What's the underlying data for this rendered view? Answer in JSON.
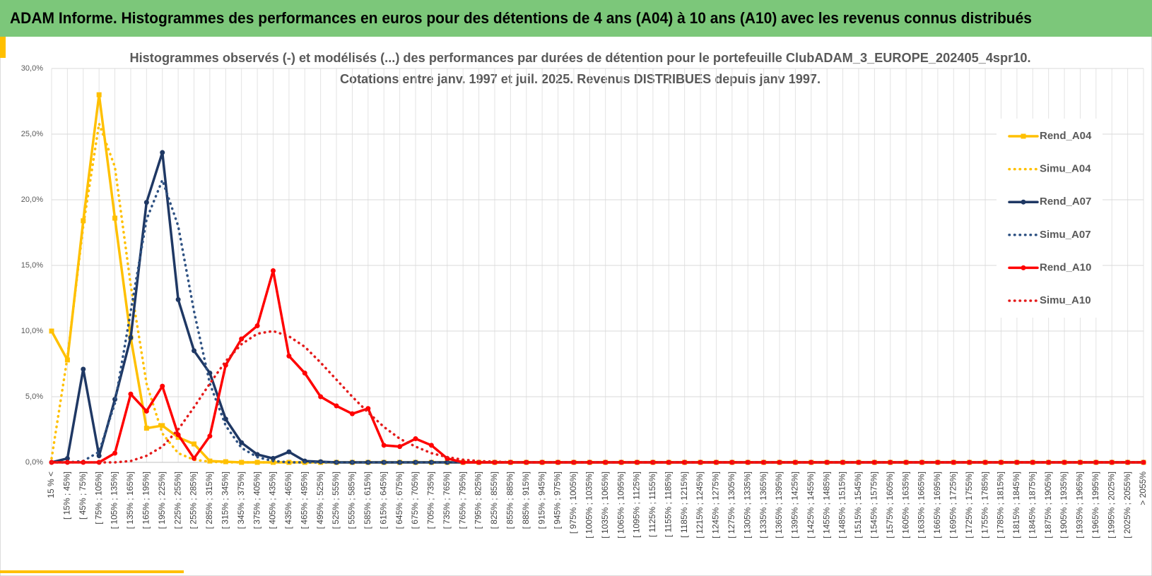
{
  "header": {
    "title": "ADAM Informe. Histogrammes des performances en euros pour des détentions de 4 ans (A04) à 10 ans (A10) avec les revenus connus distribués"
  },
  "chart_data": {
    "type": "line",
    "title": "Histogrammes observés (-) et modélisés (...) des performances par durées de détention pour le portefeuille ClubADAM_3_EUROPE_202405_4spr10.",
    "subtitle": "Cotations entre janv. 1997 et juil. 2025. Revenus DISTRIBUES depuis janv 1997.",
    "categories": [
      "15 % <",
      "[ 15% ; 45%]",
      "[ 45% ; 75%]",
      "[ 75% ; 105%]",
      "[ 105% ; 135%]",
      "[ 135% ; 165%]",
      "[ 165% ; 195%]",
      "[ 195% ; 225%]",
      "[ 225% ; 255%]",
      "[ 255% ; 285%]",
      "[ 285% ; 315%]",
      "[ 315% ; 345%]",
      "[ 345% ; 375%]",
      "[ 375% ; 405%]",
      "[ 405% ; 435%]",
      "[ 435% ; 465%]",
      "[ 465% ; 495%]",
      "[ 495% ; 525%]",
      "[ 525% ; 555%]",
      "[ 555% ; 585%]",
      "[ 585% ; 615%]",
      "[ 615% ; 645%]",
      "[ 645% ; 675%]",
      "[ 675% ; 705%]",
      "[ 705% ; 735%]",
      "[ 735% ; 765%]",
      "[ 765% ; 795%]",
      "[ 795% ; 825%]",
      "[ 825% ; 855%]",
      "[ 855% ; 885%]",
      "[ 885% ; 915%]",
      "[ 915% ; 945%]",
      "[ 945% ; 975%]",
      "[ 975% ; 1005%]",
      "[ 1005% ; 1035%]",
      "[ 1035% ; 1065%]",
      "[ 1065% ; 1095%]",
      "[ 1095% ; 1125%]",
      "[ 1125% ; 1155%]",
      "[ 1155% ; 1185%]",
      "[ 1185% ; 1215%]",
      "[ 1215% ; 1245%]",
      "[ 1245% ; 1275%]",
      "[ 1275% ; 1305%]",
      "[ 1305% ; 1335%]",
      "[ 1335% ; 1365%]",
      "[ 1365% ; 1395%]",
      "[ 1395% ; 1425%]",
      "[ 1425% ; 1455%]",
      "[ 1455% ; 1485%]",
      "[ 1485% ; 1515%]",
      "[ 1515% ; 1545%]",
      "[ 1545% ; 1575%]",
      "[ 1575% ; 1605%]",
      "[ 1605% ; 1635%]",
      "[ 1635% ; 1665%]",
      "[ 1665% ; 1695%]",
      "[ 1695% ; 1725%]",
      "[ 1725% ; 1755%]",
      "[ 1755% ; 1785%]",
      "[ 1785% ; 1815%]",
      "[ 1815% ; 1845%]",
      "[ 1845% ; 1875%]",
      "[ 1875% ; 1905%]",
      "[ 1905% ; 1935%]",
      "[ 1935% ; 1965%]",
      "[ 1965% ; 1995%]",
      "[ 1995% ; 2025%]",
      "[ 2025% ; 2055%]",
      "> 2055%"
    ],
    "series": [
      {
        "name": "Rend_A04",
        "color": "#ffc000",
        "style": "solid",
        "marker": "square",
        "values": [
          10.0,
          7.8,
          18.4,
          28.0,
          18.6,
          9.5,
          2.6,
          2.8,
          1.9,
          1.4,
          0.1,
          0.05,
          0,
          0,
          0,
          0,
          0,
          0,
          0,
          0,
          0,
          0,
          0,
          0,
          0,
          0,
          0,
          0,
          0,
          0,
          0,
          0,
          0,
          0,
          0,
          0,
          0,
          0,
          0,
          0,
          0,
          0,
          0,
          0,
          0,
          0,
          0,
          0,
          0,
          0,
          0,
          0,
          0,
          0,
          0,
          0,
          0,
          0,
          0,
          0,
          0,
          0,
          0,
          0,
          0,
          0,
          0,
          0,
          0,
          0
        ]
      },
      {
        "name": "Simu_A04",
        "color": "#ffc000",
        "style": "dotted",
        "marker": "none",
        "values": [
          0.3,
          8.0,
          18.0,
          25.8,
          22.5,
          13.5,
          6.0,
          2.2,
          0.7,
          0.2,
          0.05,
          0,
          0,
          0,
          0,
          0,
          0,
          0,
          0,
          0,
          0,
          0,
          0,
          0,
          0,
          0,
          0,
          0,
          0,
          0,
          0,
          0,
          0,
          0,
          0,
          0,
          0,
          0,
          0,
          0,
          0,
          0,
          0,
          0,
          0,
          0,
          0,
          0,
          0,
          0,
          0,
          0,
          0,
          0,
          0,
          0,
          0,
          0,
          0,
          0,
          0,
          0,
          0,
          0,
          0,
          0,
          0,
          0,
          0,
          0
        ]
      },
      {
        "name": "Rend_A07",
        "color": "#1f3864",
        "style": "solid",
        "marker": "circle",
        "values": [
          0,
          0.3,
          7.1,
          0.5,
          4.8,
          9.5,
          19.8,
          23.6,
          12.4,
          8.5,
          6.8,
          3.3,
          1.5,
          0.6,
          0.3,
          0.8,
          0.1,
          0.05,
          0,
          0,
          0,
          0,
          0,
          0,
          0,
          0,
          0,
          0,
          0,
          0,
          0,
          0,
          0,
          0,
          0,
          0,
          0,
          0,
          0,
          0,
          0,
          0,
          0,
          0,
          0,
          0,
          0,
          0,
          0,
          0,
          0,
          0,
          0,
          0,
          0,
          0,
          0,
          0,
          0,
          0,
          0,
          0,
          0,
          0,
          0,
          0,
          0,
          0,
          0,
          0
        ]
      },
      {
        "name": "Simu_A07",
        "color": "#2f5283",
        "style": "dotted",
        "marker": "none",
        "values": [
          0,
          0,
          0.1,
          0.8,
          4.5,
          11.5,
          18.5,
          21.5,
          18.0,
          11.5,
          6.0,
          2.8,
          1.1,
          0.4,
          0.1,
          0,
          0,
          0,
          0,
          0,
          0,
          0,
          0,
          0,
          0,
          0,
          0,
          0,
          0,
          0,
          0,
          0,
          0,
          0,
          0,
          0,
          0,
          0,
          0,
          0,
          0,
          0,
          0,
          0,
          0,
          0,
          0,
          0,
          0,
          0,
          0,
          0,
          0,
          0,
          0,
          0,
          0,
          0,
          0,
          0,
          0,
          0,
          0,
          0,
          0,
          0,
          0,
          0,
          0,
          0
        ]
      },
      {
        "name": "Rend_A10",
        "color": "#ff0000",
        "style": "solid",
        "marker": "circle",
        "values": [
          0,
          0,
          0,
          0,
          0.7,
          5.2,
          3.9,
          5.8,
          2.1,
          0.3,
          2.0,
          7.4,
          9.4,
          10.4,
          14.6,
          8.1,
          6.8,
          5.0,
          4.3,
          3.7,
          4.1,
          1.3,
          1.2,
          1.8,
          1.3,
          0.3,
          0,
          0,
          0,
          0,
          0,
          0,
          0,
          0,
          0,
          0,
          0,
          0,
          0,
          0,
          0,
          0,
          0,
          0,
          0,
          0,
          0,
          0,
          0,
          0,
          0,
          0,
          0,
          0,
          0,
          0,
          0,
          0,
          0,
          0,
          0,
          0,
          0,
          0,
          0,
          0,
          0,
          0,
          0,
          0
        ]
      },
      {
        "name": "Simu_A10",
        "color": "#e41a1a",
        "style": "dotted",
        "marker": "none",
        "values": [
          0,
          0,
          0,
          0,
          0,
          0.1,
          0.5,
          1.2,
          2.5,
          4.2,
          6.0,
          7.7,
          9.0,
          9.8,
          10.0,
          9.6,
          8.8,
          7.6,
          6.3,
          5.0,
          3.8,
          2.7,
          1.8,
          1.2,
          0.7,
          0.4,
          0.2,
          0.1,
          0.05,
          0.02,
          0,
          0,
          0,
          0,
          0,
          0,
          0,
          0,
          0,
          0,
          0,
          0,
          0,
          0,
          0,
          0,
          0,
          0,
          0,
          0,
          0,
          0,
          0,
          0,
          0,
          0,
          0,
          0,
          0,
          0,
          0,
          0,
          0,
          0,
          0,
          0,
          0,
          0,
          0,
          0
        ]
      }
    ],
    "ylim": [
      0,
      30
    ],
    "yticks": [
      {
        "value": 0,
        "label": "0,0%"
      },
      {
        "value": 5,
        "label": "5,0%"
      },
      {
        "value": 10,
        "label": "10,0%"
      },
      {
        "value": 15,
        "label": "15,0%"
      },
      {
        "value": 20,
        "label": "20,0%"
      },
      {
        "value": 25,
        "label": "25,0%"
      },
      {
        "value": 30,
        "label": "30,0%"
      }
    ],
    "grid": true,
    "legend": "right"
  }
}
